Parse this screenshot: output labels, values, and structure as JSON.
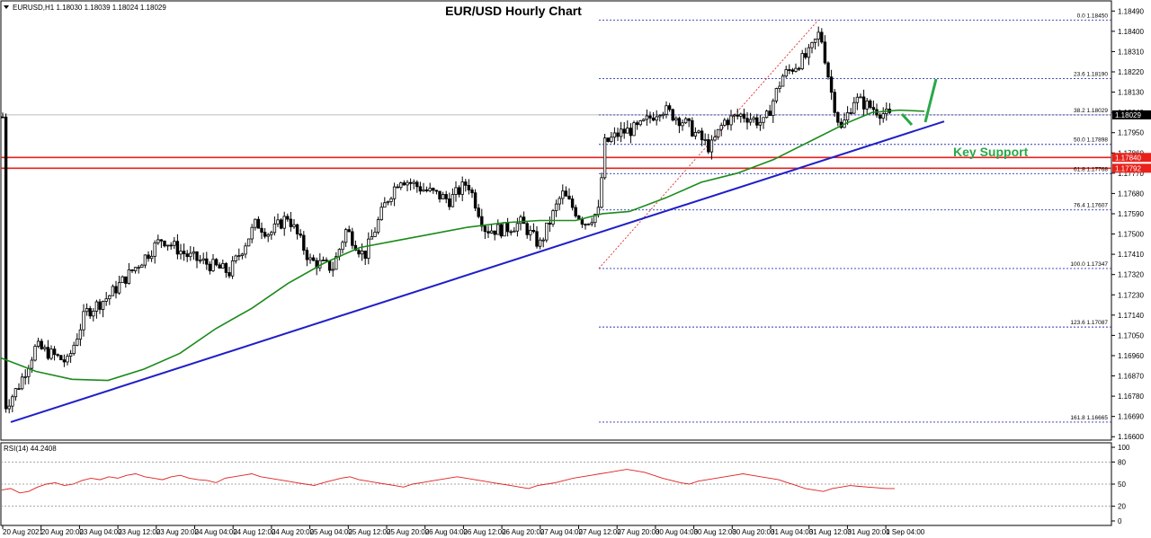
{
  "chart_data": {
    "type": "candlestick",
    "symbol_header": "EURUSD,H1  1.18030 1.18039 1.18024 1.18029",
    "title": "EUR/USD Hourly Chart",
    "current_price_label": "1.18029",
    "price_axis": {
      "range": [
        1.16585,
        1.18535
      ],
      "ticks": [
        "1.18490",
        "1.18400",
        "1.18310",
        "1.18220",
        "1.18130",
        "1.18040",
        "1.17950",
        "1.17860",
        "1.17770",
        "1.17680",
        "1.17590",
        "1.17500",
        "1.17410",
        "1.17320",
        "1.17230",
        "1.17140",
        "1.17050",
        "1.16960",
        "1.16870",
        "1.16780",
        "1.16690",
        "1.16600"
      ]
    },
    "time_axis": {
      "labels": [
        "20 Aug 2021",
        "20 Aug 20:00",
        "23 Aug 04:00",
        "23 Aug 12:00",
        "23 Aug 20:00",
        "24 Aug 04:00",
        "24 Aug 12:00",
        "24 Aug 20:00",
        "25 Aug 04:00",
        "25 Aug 12:00",
        "25 Aug 20:00",
        "26 Aug 04:00",
        "26 Aug 12:00",
        "26 Aug 20:00",
        "27 Aug 04:00",
        "27 Aug 12:00",
        "27 Aug 20:00",
        "30 Aug 04:00",
        "30 Aug 12:00",
        "30 Aug 20:00",
        "31 Aug 04:00",
        "31 Aug 12:00",
        "31 Aug 20:00",
        "1 Sep 04:00"
      ]
    },
    "fibonacci_levels": [
      {
        "label": "0.0 1.18450",
        "price": 1.1845
      },
      {
        "label": "23.6 1.18190",
        "price": 1.1819
      },
      {
        "label": "38.2 1.18029",
        "price": 1.18029
      },
      {
        "label": "50.0 1.17898",
        "price": 1.17898
      },
      {
        "label": "61.8 1.17768",
        "price": 1.17768
      },
      {
        "label": "76.4 1.17607",
        "price": 1.17607
      },
      {
        "label": "100.0 1.17347",
        "price": 1.17347
      },
      {
        "label": "123.6 1.17087",
        "price": 1.17087
      },
      {
        "label": "161.8 1.16665",
        "price": 1.16665
      }
    ],
    "horizontal_levels": [
      {
        "label": "1.17840",
        "price": 1.1784,
        "color": "#e8211b"
      },
      {
        "label": "1.17792",
        "price": 1.17792,
        "color": "#e8211b"
      }
    ],
    "annotations": [
      {
        "text": "Key Support",
        "color": "#2aa84a"
      }
    ],
    "moving_average_color": "#1a8a1a",
    "trendline_color": "#1f1fc8",
    "fib_color": "#2b35b8",
    "rsi": {
      "label": "RSI(14) 44.2408",
      "range": [
        0,
        100
      ],
      "ticks": [
        "100",
        "80",
        "50",
        "20",
        "0"
      ],
      "color": "#e02020",
      "values": [
        42,
        44,
        38,
        40,
        46,
        50,
        52,
        48,
        50,
        55,
        58,
        56,
        60,
        58,
        62,
        64,
        60,
        58,
        56,
        60,
        62,
        58,
        56,
        55,
        52,
        58,
        60,
        62,
        64,
        60,
        58,
        56,
        54,
        52,
        50,
        48,
        52,
        55,
        58,
        60,
        56,
        54,
        52,
        50,
        48,
        46,
        50,
        52,
        54,
        56,
        58,
        60,
        58,
        56,
        54,
        52,
        50,
        48,
        46,
        44,
        48,
        50,
        52,
        55,
        58,
        60,
        62,
        64,
        66,
        68,
        70,
        68,
        66,
        62,
        58,
        55,
        52,
        50,
        54,
        56,
        58,
        60,
        62,
        64,
        62,
        60,
        58,
        56,
        52,
        48,
        44,
        42,
        40,
        44,
        46,
        48,
        47,
        46,
        45,
        44,
        44
      ]
    }
  }
}
